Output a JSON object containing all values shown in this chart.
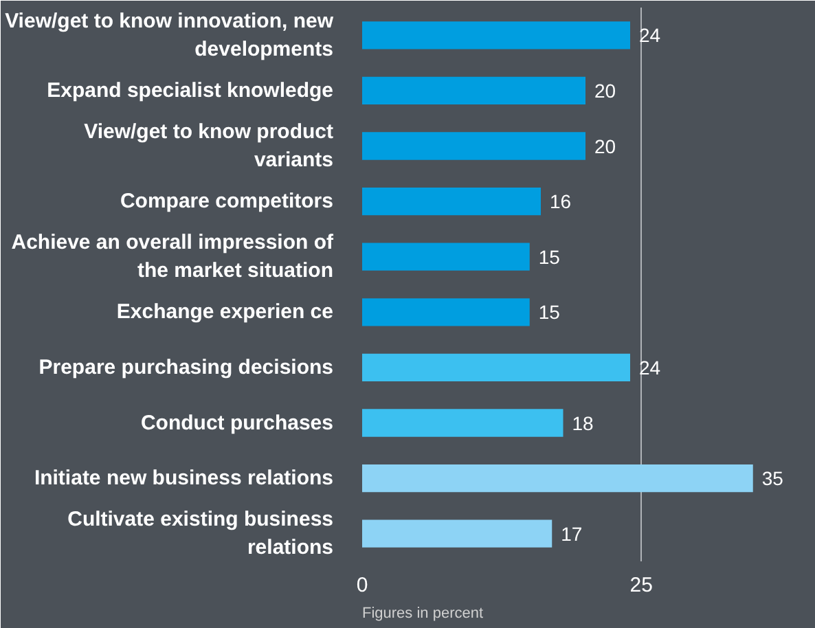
{
  "chart_data": {
    "type": "bar",
    "orientation": "horizontal",
    "categories": [
      "View/get to know innovation, new developments",
      "Expand specialist knowledge",
      "View/get to know product variants",
      "Compare competitors",
      "Achieve an overall impression of the market situation",
      "Exchange experien ce",
      "Prepare purchasing decisions",
      "Conduct purchases",
      "Initiate new business relations",
      "Cultivate existing business relations"
    ],
    "values": [
      24,
      20,
      20,
      16,
      15,
      15,
      24,
      18,
      35,
      17
    ],
    "colors": [
      "#009ee0",
      "#009ee0",
      "#009ee0",
      "#009ee0",
      "#009ee0",
      "#009ee0",
      "#3cc0f0",
      "#3cc0f0",
      "#8dd3f5",
      "#8dd3f5"
    ],
    "xlim": [
      0,
      40
    ],
    "xticks": [
      0,
      25
    ],
    "grid": "x",
    "data_labels": true,
    "annotations": [
      "Figures in percent"
    ]
  }
}
